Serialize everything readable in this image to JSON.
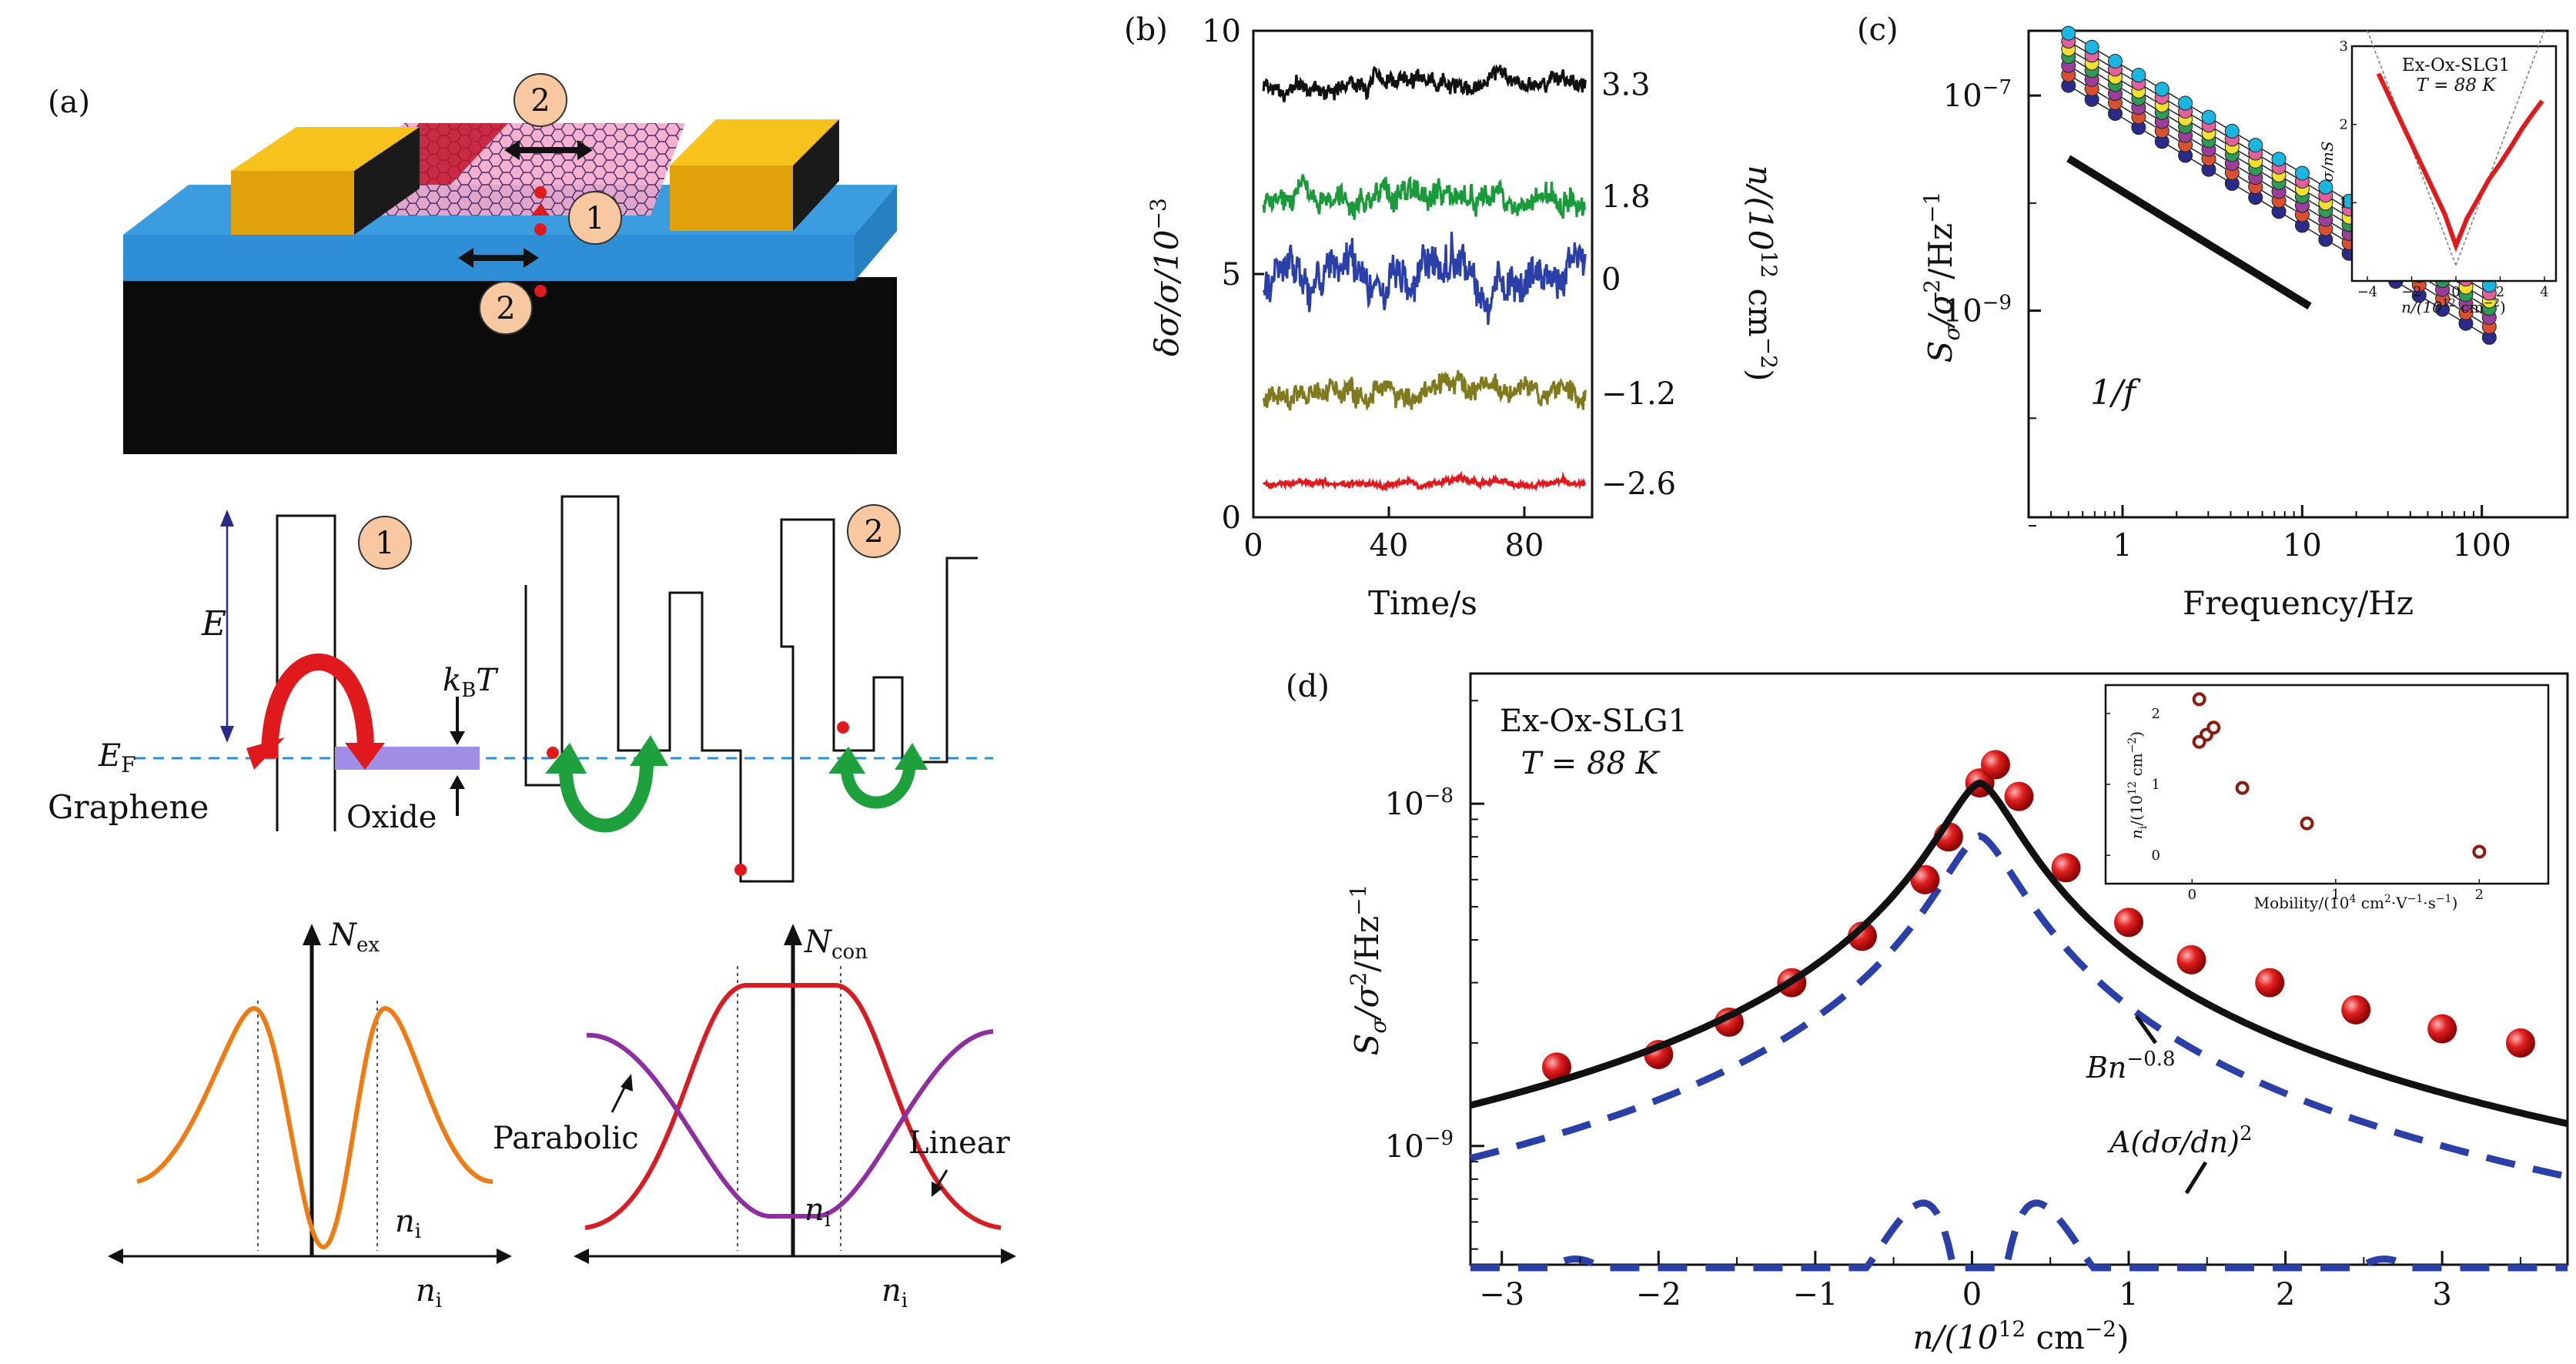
{
  "panel_a": {
    "label": "(a)",
    "circle_1": "1",
    "circle_2": "2",
    "E": "E",
    "EF": "E",
    "EF_sub": "F",
    "kBT_k": "k",
    "kBT_B": "B",
    "kBT_T": "T",
    "graphene": "Graphene",
    "oxide": "Oxide",
    "N_ex": "N",
    "N_ex_sub": "ex",
    "N_con": "N",
    "N_con_sub": "con",
    "n_i": "n",
    "n_i_sub": "i",
    "parabolic": "Parabolic",
    "linear": "Linear",
    "colors": {
      "substrate": "#0d0d0d",
      "oxide": "#3b9ce0",
      "contact": "#f2b705",
      "channel": "#f0a3c0",
      "arrow_red": "#e0191c",
      "arrow_green": "#1ea03c",
      "curve_orange": "#f07b12",
      "curve_red": "#d81c24",
      "curve_purple": "#8f2ea0",
      "kBT_band": "#a08ee6"
    }
  },
  "panel_b": {
    "label": "(b)",
    "ylabel": "δσ/σ/10",
    "ylabel_exp": "−3",
    "xlabel": "Time/s",
    "right_label": "n/(10",
    "right_label_exp": "12",
    "right_label_tail": " cm",
    "right_label_exp2": "−2",
    "right_label_close": ")",
    "yticks": [
      "0",
      "5",
      "10"
    ],
    "xticks": [
      "0",
      "40",
      "80"
    ],
    "trace_labels": [
      "3.3",
      "1.8",
      "0",
      "−1.2",
      "−2.6"
    ]
  },
  "panel_c": {
    "label": "(c)",
    "ylabel": "S",
    "ylabel_sub": "σ",
    "ylabel_tail": "/σ",
    "ylabel_sup": "2",
    "ylabel_tail2": "/Hz",
    "ylabel_sup2": "−1",
    "xlabel": "Frequency/Hz",
    "yticks": [
      "10",
      "10"
    ],
    "ytick_exps": [
      "−7",
      "−9"
    ],
    "xticks": [
      "1",
      "10",
      "100"
    ],
    "one_over_f": "1/f",
    "inset": {
      "title": "Ex-Ox-SLG1",
      "temp": "T = 88  K",
      "ylabel": "σ/mS",
      "xlabel": "n/(10",
      "xlabel_exp": "12",
      "xlabel_tail": " cm",
      "xlabel_exp2": "−2",
      "xlabel_close": ")",
      "xticks": [
        "−4",
        "−2",
        "0",
        "2",
        "4"
      ],
      "yticks": [
        "1",
        "2",
        "3"
      ]
    }
  },
  "panel_d": {
    "label": "(d)",
    "ylabel": "S",
    "ylabel_sub": "σ",
    "ylabel_tail": "/σ",
    "ylabel_sup": "2",
    "ylabel_tail2": "/Hz",
    "ylabel_sup2": "−1",
    "xlabel": "n/(10",
    "xlabel_exp": "12",
    "xlabel_tail": " cm",
    "xlabel_exp2": "−2",
    "xlabel_close": ")",
    "sample": "Ex-Ox-SLG1",
    "temp": "T = 88  K",
    "yticks": [
      "10",
      "10"
    ],
    "ytick_exps": [
      "−8",
      "−9"
    ],
    "xticks": [
      "−3",
      "−2",
      "−1",
      "0",
      "1",
      "2",
      "3"
    ],
    "fit_label": "Bn",
    "fit_exp": "−0.8",
    "deriv_label": "A(dσ/dn)",
    "deriv_exp": "2",
    "inset": {
      "ylabel": "n",
      "ylabel_sub": "i",
      "ylabel_tail": "/(10",
      "ylabel_exp": "12",
      "ylabel_tail2": " cm",
      "ylabel_exp2": "−2",
      "ylabel_close": ")",
      "xlabel": "Mobility/(10",
      "xlabel_exp": "4",
      "xlabel_tail": " cm",
      "xlabel_exp2": "2",
      "xlabel_tail2": "·V",
      "xlabel_exp3": "−1",
      "xlabel_tail3": "·s",
      "xlabel_exp4": "−1",
      "xlabel_close": ")",
      "xticks": [
        "0",
        "1",
        "2"
      ],
      "yticks": [
        "0",
        "1",
        "2"
      ]
    }
  },
  "chart_data": [
    {
      "type": "line",
      "panel": "b",
      "xlabel": "Time/s",
      "ylabel": "δσ/σ/10^−3",
      "xlim": [
        0,
        100
      ],
      "ylim": [
        0,
        10
      ],
      "series": [
        {
          "name": "3.3",
          "color": "#111111",
          "mean": 8.9,
          "noise": 0.3
        },
        {
          "name": "1.8",
          "color": "#1a9a3a",
          "mean": 6.6,
          "noise": 0.45
        },
        {
          "name": "0",
          "color": "#2a3fa8",
          "mean": 4.9,
          "noise": 0.7
        },
        {
          "name": "−1.2",
          "color": "#7f7a1e",
          "mean": 2.55,
          "noise": 0.4
        },
        {
          "name": "−2.6",
          "color": "#e0191c",
          "mean": 0.7,
          "noise": 0.12
        }
      ]
    },
    {
      "type": "scatter",
      "panel": "c",
      "xlabel": "Frequency/Hz",
      "ylabel": "S_σ/σ²/Hz^−1",
      "scale": "log-log",
      "xlim": [
        0.3,
        300
      ],
      "ylim": [
        1.2e-11,
        4e-07
      ],
      "slope": -1,
      "series": [
        {
          "color": "#1ab5e0",
          "S_at_1Hz": 1.9e-07
        },
        {
          "color": "#e0609c",
          "S_at_1Hz": 1.6e-07
        },
        {
          "color": "#f0e030",
          "S_at_1Hz": 1.35e-07
        },
        {
          "color": "#2e9a55",
          "S_at_1Hz": 1.15e-07
        },
        {
          "color": "#9a3e9a",
          "S_at_1Hz": 9.5e-08
        },
        {
          "color": "#d85030",
          "S_at_1Hz": 7.8e-08
        },
        {
          "color": "#2a2a8a",
          "S_at_1Hz": 6.2e-08
        }
      ],
      "reference_line": {
        "label": "1/f",
        "x": [
          0.5,
          11
        ],
        "y": [
          2.6e-08,
          1.1e-09
        ]
      }
    },
    {
      "type": "line",
      "panel": "c_inset",
      "xlabel": "n/(10^12 cm^−2)",
      "ylabel": "σ/mS",
      "xlim": [
        -4,
        4
      ],
      "ylim": [
        0,
        3
      ],
      "x": [
        -3.5,
        -3,
        -2.5,
        -2,
        -1.5,
        -1,
        -0.5,
        0,
        0.5,
        1,
        1.5,
        2,
        2.5,
        3,
        3.5,
        3.9
      ],
      "y": [
        2.65,
        2.35,
        2.05,
        1.75,
        1.45,
        1.15,
        0.85,
        0.45,
        0.8,
        1.05,
        1.3,
        1.5,
        1.72,
        1.95,
        2.15,
        2.3
      ]
    },
    {
      "type": "scatter",
      "panel": "d",
      "xlabel": "n/(10^12 cm^−2)",
      "ylabel": "S_σ/σ²/Hz^−1",
      "yscale": "log",
      "xlim": [
        -3.2,
        3.8
      ],
      "ylim": [
        4.5e-10,
        2.4e-08
      ],
      "points": {
        "x": [
          -2.65,
          -2.0,
          -1.55,
          -1.15,
          -0.7,
          -0.3,
          -0.15,
          0.05,
          0.15,
          0.3,
          0.6,
          1.0,
          1.4,
          1.9,
          2.45,
          3.0,
          3.5
        ],
        "y": [
          1.7e-09,
          1.85e-09,
          2.3e-09,
          3e-09,
          4.1e-09,
          6e-09,
          8e-09,
          1.15e-08,
          1.3e-08,
          1.05e-08,
          6.5e-09,
          4.5e-09,
          3.5e-09,
          3e-09,
          2.5e-09,
          2.2e-09,
          2e-09
        ]
      }
    },
    {
      "type": "scatter",
      "panel": "d_inset",
      "xlabel": "Mobility/(10^4 cm²·V^−1·s^−1)",
      "ylabel": "n_i/(10^12 cm^−2)",
      "xlim": [
        -0.2,
        2.4
      ],
      "ylim": [
        -0.4,
        2.4
      ],
      "x": [
        0.05,
        0.1,
        0.15,
        0.05,
        0.35,
        0.8,
        2.0
      ],
      "y": [
        2.2,
        1.7,
        1.8,
        1.6,
        0.95,
        0.45,
        0.05
      ]
    }
  ]
}
